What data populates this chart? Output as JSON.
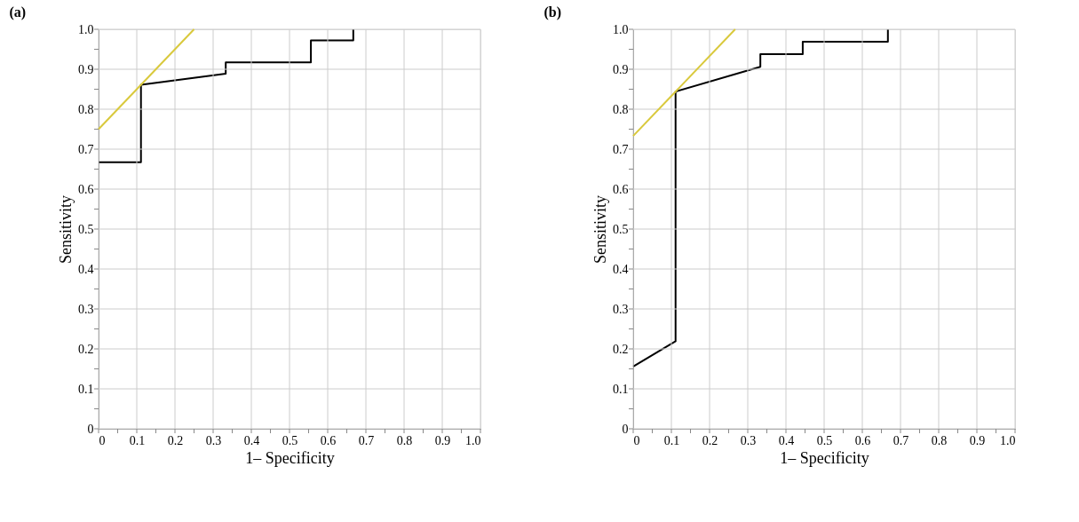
{
  "chart_data": [
    {
      "type": "line",
      "title": "(a)",
      "xlabel": "1– Specificity",
      "ylabel": "Sensitivity",
      "grid": true,
      "marker": "none",
      "line_style": "solid",
      "xlim": [
        0,
        1
      ],
      "ylim": [
        0,
        1
      ],
      "xticks": [
        0,
        {
          "value": 0.05,
          "label": null
        },
        0.1,
        {
          "value": 0.15,
          "label": null
        },
        0.2,
        {
          "value": 0.25,
          "label": null
        },
        0.3,
        {
          "value": 0.35,
          "label": null
        },
        0.4,
        {
          "value": 0.45,
          "label": null
        },
        0.5,
        {
          "value": 0.55,
          "label": null
        },
        0.6,
        {
          "value": 0.65,
          "label": null
        },
        0.7,
        {
          "value": 0.75,
          "label": null
        },
        0.8,
        {
          "value": 0.85,
          "label": null
        },
        0.9,
        {
          "value": 0.95,
          "label": null
        },
        {
          "value": 1,
          "label": "1.0"
        }
      ],
      "yticks": [
        0,
        {
          "value": 0.05,
          "label": null
        },
        0.1,
        {
          "value": 0.15,
          "label": null
        },
        0.2,
        {
          "value": 0.25,
          "label": null
        },
        0.3,
        {
          "value": 0.35,
          "label": null
        },
        0.4,
        {
          "value": 0.45,
          "label": null
        },
        0.5,
        {
          "value": 0.55,
          "label": null
        },
        0.6,
        {
          "value": 0.65,
          "label": null
        },
        0.7,
        {
          "value": 0.75,
          "label": null
        },
        0.8,
        {
          "value": 0.85,
          "label": null
        },
        0.9,
        {
          "value": 0.95,
          "label": null
        },
        {
          "value": 1,
          "label": "1.0"
        }
      ],
      "series": [
        {
          "color": "#000000",
          "x": [
            0,
            0.111,
            0.111,
            0.333,
            0.333,
            0.556,
            0.556,
            0.667,
            0.667
          ],
          "values": [
            0.667,
            0.667,
            0.861,
            0.889,
            0.917,
            0.917,
            0.972,
            0.972,
            1.0
          ]
        },
        {
          "color": "#d9c93c",
          "x": [
            0,
            0.25
          ],
          "values": [
            0.75,
            1.0
          ]
        }
      ]
    },
    {
      "type": "line",
      "title": "(b)",
      "xlabel": "1– Specificity",
      "ylabel": "Sensitivity",
      "grid": true,
      "marker": "none",
      "line_style": "solid",
      "xlim": [
        0,
        1
      ],
      "ylim": [
        0,
        1
      ],
      "xticks": [
        0,
        {
          "value": 0.05,
          "label": null
        },
        0.1,
        {
          "value": 0.15,
          "label": null
        },
        0.2,
        {
          "value": 0.25,
          "label": null
        },
        0.3,
        {
          "value": 0.35,
          "label": null
        },
        0.4,
        {
          "value": 0.45,
          "label": null
        },
        0.5,
        {
          "value": 0.55,
          "label": null
        },
        0.6,
        {
          "value": 0.65,
          "label": null
        },
        0.7,
        {
          "value": 0.75,
          "label": null
        },
        0.8,
        {
          "value": 0.85,
          "label": null
        },
        0.9,
        {
          "value": 0.95,
          "label": null
        },
        {
          "value": 1,
          "label": "1.0"
        }
      ],
      "yticks": [
        0,
        {
          "value": 0.05,
          "label": null
        },
        0.1,
        {
          "value": 0.15,
          "label": null
        },
        0.2,
        {
          "value": 0.25,
          "label": null
        },
        0.3,
        {
          "value": 0.35,
          "label": null
        },
        0.4,
        {
          "value": 0.45,
          "label": null
        },
        0.5,
        {
          "value": 0.55,
          "label": null
        },
        0.6,
        {
          "value": 0.65,
          "label": null
        },
        0.7,
        {
          "value": 0.75,
          "label": null
        },
        0.8,
        {
          "value": 0.85,
          "label": null
        },
        0.9,
        {
          "value": 0.95,
          "label": null
        },
        {
          "value": 1,
          "label": "1.0"
        }
      ],
      "series": [
        {
          "color": "#000000",
          "x": [
            0,
            0.111,
            0.111,
            0.333,
            0.333,
            0.444,
            0.444,
            0.667,
            0.667
          ],
          "values": [
            0.156,
            0.219,
            0.844,
            0.906,
            0.938,
            0.938,
            0.969,
            0.969,
            1.0
          ]
        },
        {
          "color": "#d9c93c",
          "x": [
            0,
            0.267
          ],
          "values": [
            0.733,
            1.0
          ]
        }
      ]
    }
  ]
}
